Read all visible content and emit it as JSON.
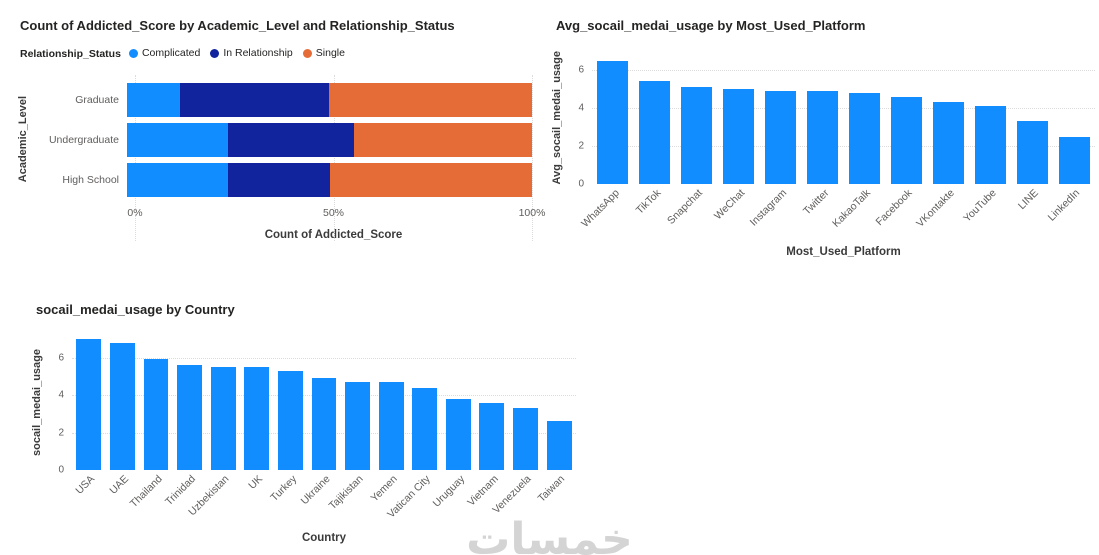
{
  "watermark": "خمسات",
  "chart_data": [
    {
      "type": "bar",
      "orientation": "horizontal_stacked_100pct",
      "title": "Count of Addicted_Score by Academic_Level and Relationship_Status",
      "legend_title": "Relationship_Status",
      "legend_position": "top",
      "ylabel": "Academic_Level",
      "xlabel": "Count of Addicted_Score",
      "categories": [
        "Graduate",
        "Undergraduate",
        "High School"
      ],
      "series": [
        {
          "name": "Complicated",
          "color": "#118DFF",
          "values": [
            13,
            25,
            25
          ]
        },
        {
          "name": "In Relationship",
          "color": "#12239E",
          "values": [
            37,
            31,
            25
          ]
        },
        {
          "name": "Single",
          "color": "#E66C37",
          "values": [
            50,
            44,
            50
          ]
        }
      ],
      "x_ticks": [
        "0%",
        "50%",
        "100%"
      ],
      "xlim": [
        0,
        100
      ],
      "grid": "dotted-vertical"
    },
    {
      "type": "bar",
      "orientation": "vertical",
      "title": "Avg_socail_medai_usage by Most_Used_Platform",
      "xlabel": "Most_Used_Platform",
      "ylabel": "Avg_socail_medai_usage",
      "categories": [
        "WhatsApp",
        "TikTok",
        "Snapchat",
        "WeChat",
        "Instagram",
        "Twitter",
        "KakaoTalk",
        "Facebook",
        "VKontakte",
        "YouTube",
        "LINE",
        "LinkedIn"
      ],
      "values": [
        6.5,
        5.4,
        5.1,
        5.0,
        4.9,
        4.9,
        4.8,
        4.6,
        4.3,
        4.1,
        3.3,
        2.5
      ],
      "bar_color": "#118DFF",
      "y_ticks": [
        0,
        2,
        4,
        6
      ],
      "ylim": [
        0,
        7
      ],
      "grid": "dotted-horizontal",
      "x_label_rotation": -45
    },
    {
      "type": "bar",
      "orientation": "vertical",
      "title": "socail_medai_usage by Country",
      "xlabel": "Country",
      "ylabel": "socail_medai_usage",
      "categories": [
        "USA",
        "UAE",
        "Thailand",
        "Trinidad",
        "Uzbekistan",
        "UK",
        "Turkey",
        "Ukraine",
        "Tajikistan",
        "Yemen",
        "Vatican City",
        "Uruguay",
        "Vietnam",
        "Venezuela",
        "Taiwan"
      ],
      "values": [
        7.0,
        6.8,
        5.9,
        5.6,
        5.5,
        5.5,
        5.3,
        4.9,
        4.7,
        4.7,
        4.4,
        3.8,
        3.6,
        3.3,
        2.6
      ],
      "bar_color": "#118DFF",
      "y_ticks": [
        0,
        2,
        4,
        6
      ],
      "ylim": [
        0,
        7.2
      ],
      "grid": "dotted-horizontal",
      "x_label_rotation": -45
    }
  ]
}
